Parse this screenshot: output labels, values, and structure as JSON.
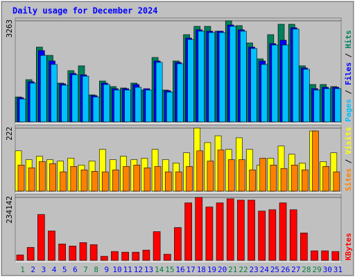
{
  "chart_data": [
    {
      "type": "bar",
      "title": "Daily usage for December 2024",
      "categories": [
        "1",
        "2",
        "3",
        "4",
        "5",
        "6",
        "7",
        "8",
        "9",
        "10",
        "11",
        "12",
        "13",
        "14",
        "15",
        "16",
        "17",
        "18",
        "19",
        "20",
        "21",
        "22",
        "23",
        "24",
        "25",
        "26",
        "27",
        "28",
        "29",
        "30",
        "31"
      ],
      "category_colors": [
        "#008040",
        "#0000ff",
        "#0000ff",
        "#0000ff",
        "#0000ff",
        "#0000ff",
        "#008040",
        "#008040",
        "#0000ff",
        "#0000ff",
        "#0000ff",
        "#0000ff",
        "#0000ff",
        "#008040",
        "#008040",
        "#0000ff",
        "#0000ff",
        "#0000ff",
        "#0000ff",
        "#0000ff",
        "#008040",
        "#008040",
        "#0000ff",
        "#0000ff",
        "#0000ff",
        "#0000ff",
        "#0000ff",
        "#008040",
        "#008040",
        "#0000ff",
        "#0000ff"
      ],
      "ylim": [
        0,
        3263
      ],
      "yticks": [
        3263
      ],
      "series": [
        {
          "name": "Pages",
          "color": "#00c0ff",
          "values": [
            738,
            1252,
            2146,
            1855,
            1185,
            1520,
            1475,
            805,
            1207,
            1028,
            1028,
            1118,
            1028,
            1922,
            961,
            1877,
            2660,
            2928,
            2883,
            2883,
            3084,
            2928,
            2369,
            1855,
            2481,
            2481,
            2995,
            1699,
            1028,
            1073,
            1073
          ]
        },
        {
          "name": "Files",
          "color": "#0000ff",
          "values": [
            783,
            1297,
            2302,
            1967,
            1230,
            1565,
            1520,
            850,
            1252,
            1073,
            1073,
            1207,
            1073,
            1967,
            1006,
            1922,
            2705,
            2973,
            2928,
            2928,
            3129,
            2973,
            2414,
            1967,
            2526,
            2637,
            3040,
            1744,
            1073,
            1118,
            1118
          ]
        },
        {
          "name": "Hits",
          "color": "#00805c",
          "values": [
            805,
            1363,
            2414,
            2146,
            1252,
            1654,
            1810,
            872,
            1319,
            1140,
            1095,
            1252,
            1028,
            2079,
            1028,
            1967,
            2816,
            3084,
            3084,
            2928,
            3263,
            3107,
            2548,
            2034,
            2816,
            3151,
            3151,
            1810,
            1207,
            1207,
            1140
          ]
        }
      ]
    },
    {
      "type": "bar",
      "ylim": [
        0,
        222
      ],
      "yticks": [
        222
      ],
      "series": [
        {
          "name": "Sites",
          "color": "#ff8000",
          "values": [
            92,
            82,
            104,
            97,
            68,
            87,
            75,
            70,
            68,
            75,
            87,
            92,
            82,
            87,
            68,
            68,
            87,
            142,
            106,
            145,
            111,
            111,
            75,
            116,
            92,
            80,
            92,
            75,
            212,
            87,
            68
          ]
        },
        {
          "name": "Visits",
          "color": "#ffff00",
          "values": [
            142,
            111,
            123,
            111,
            106,
            116,
            92,
            106,
            147,
            111,
            123,
            111,
            116,
            147,
            111,
            99,
            135,
            222,
            171,
            195,
            147,
            188,
            147,
            92,
            116,
            159,
            130,
            99,
            212,
            104,
            135
          ]
        }
      ]
    },
    {
      "type": "bar",
      "ylim": [
        0,
        234142
      ],
      "yticks": [
        234142
      ],
      "series": [
        {
          "name": "KBytes",
          "color": "#ff0000",
          "values": [
            20360,
            48355,
            170515,
            109435,
            61080,
            53445,
            66170,
            58535,
            15270,
            33085,
            30540,
            30540,
            38175,
            106890,
            22905,
            122160,
            213780,
            234142,
            198510,
            213780,
            229050,
            223960,
            223960,
            183240,
            188330,
            213780,
            188330,
            101800,
            35630,
            35630,
            33085
          ]
        }
      ]
    }
  ]
}
